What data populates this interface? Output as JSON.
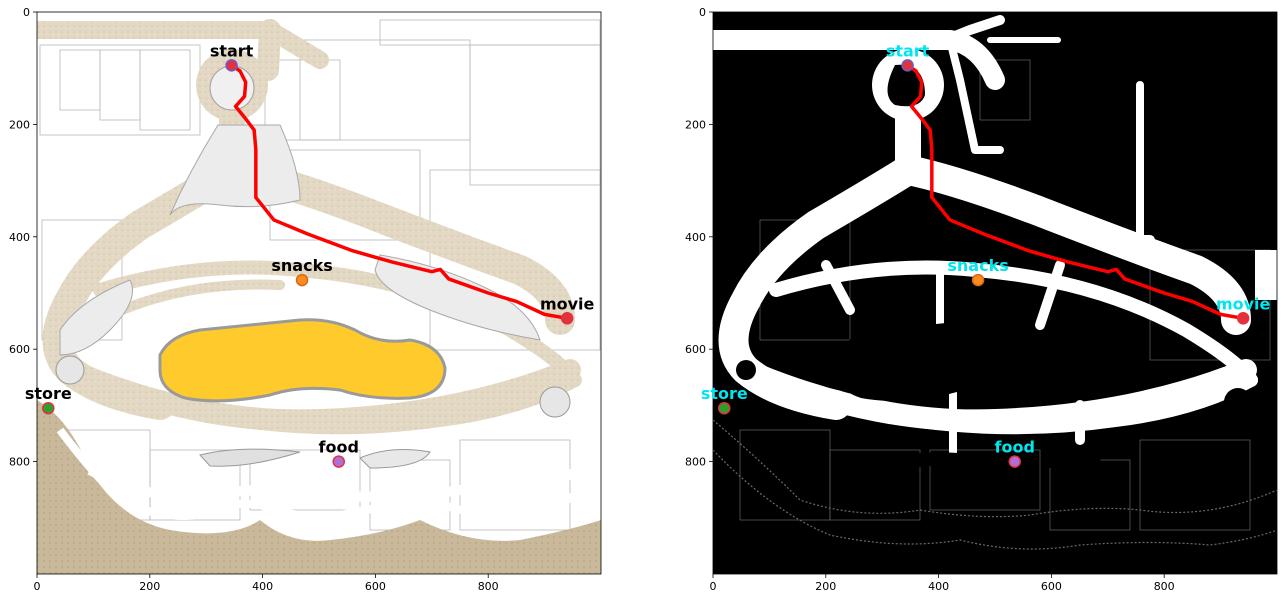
{
  "panels": [
    {
      "id": "map",
      "label_color": "#000000",
      "x_ticks": [
        "0",
        "200",
        "400",
        "600",
        "800"
      ],
      "y_ticks": [
        "0",
        "200",
        "400",
        "600",
        "800"
      ],
      "tick_values": [
        0,
        200,
        400,
        600,
        800
      ]
    },
    {
      "id": "occupancy",
      "label_color": "#00e5ee",
      "x_ticks": [
        "0",
        "200",
        "400",
        "600",
        "800"
      ],
      "y_ticks": [
        "0",
        "200",
        "400",
        "600",
        "800"
      ],
      "tick_values": [
        0,
        200,
        400,
        600,
        800
      ]
    }
  ],
  "axis_range": [
    0,
    1000
  ],
  "markers": [
    {
      "key": "start",
      "label": "start",
      "x": 345,
      "y": 95,
      "fill": "#e2323c",
      "edge": "#6a5acd"
    },
    {
      "key": "snacks",
      "label": "snacks",
      "x": 470,
      "y": 477,
      "fill": "#ff8c1a",
      "edge": "#d2691e"
    },
    {
      "key": "movie",
      "label": "movie",
      "x": 940,
      "y": 545,
      "fill": "#e2323c",
      "edge": "#e2323c"
    },
    {
      "key": "store",
      "label": "store",
      "x": 20,
      "y": 705,
      "fill": "#2ca02c",
      "edge": "#e2323c"
    },
    {
      "key": "food",
      "label": "food",
      "x": 535,
      "y": 800,
      "fill": "#b06fd6",
      "edge": "#e2323c"
    }
  ],
  "route": {
    "color": "#ff0000",
    "points": [
      [
        345,
        95
      ],
      [
        360,
        105
      ],
      [
        370,
        125
      ],
      [
        368,
        150
      ],
      [
        352,
        168
      ],
      [
        370,
        190
      ],
      [
        385,
        210
      ],
      [
        388,
        245
      ],
      [
        388,
        330
      ],
      [
        420,
        370
      ],
      [
        480,
        395
      ],
      [
        560,
        425
      ],
      [
        630,
        445
      ],
      [
        700,
        462
      ],
      [
        715,
        458
      ],
      [
        730,
        475
      ],
      [
        800,
        500
      ],
      [
        850,
        515
      ],
      [
        900,
        538
      ],
      [
        940,
        545
      ]
    ]
  }
}
